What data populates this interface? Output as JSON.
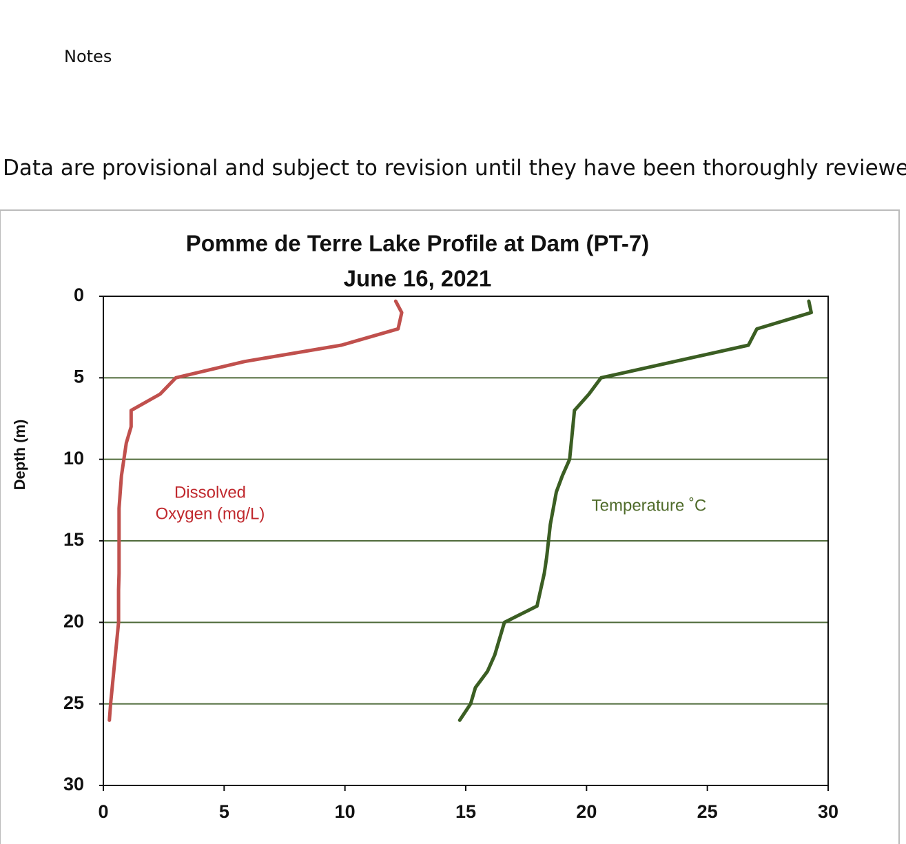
{
  "notes": "Notes",
  "disclaimer": "Data are provisional and subject to revision until they have been thoroughly reviewed a",
  "chart_data": {
    "type": "line",
    "title": [
      "Pomme de Terre Lake Profile at Dam (PT-7)",
      "June 16, 2021"
    ],
    "ylabel": "Depth (m)",
    "y_inverted": true,
    "xlim": [
      0,
      30
    ],
    "xticks": [
      0,
      5,
      10,
      15,
      20,
      25,
      30
    ],
    "ylim": [
      0,
      30
    ],
    "yticks": [
      0,
      5,
      10,
      15,
      20,
      25,
      30
    ],
    "grid": true,
    "grid_color": "#4f6b3a",
    "series": [
      {
        "name": [
          "Dissolved",
          "Oxygen (mg/L)"
        ],
        "color": "#c0504d",
        "label_color": "#c0282d",
        "depth": [
          0.3,
          1,
          2,
          3,
          4,
          5,
          6,
          7,
          8,
          9,
          11,
          13,
          17,
          18,
          20,
          25,
          26
        ],
        "values": [
          12.1,
          12.35,
          12.2,
          9.85,
          5.85,
          3.0,
          2.35,
          1.15,
          1.15,
          0.95,
          0.75,
          0.65,
          0.65,
          0.63,
          0.63,
          0.3,
          0.25
        ]
      },
      {
        "name": [
          "Temperature ˚C"
        ],
        "color": "#3b5e23",
        "label_color": "#4f6b2a",
        "depth": [
          0.3,
          1,
          2,
          3,
          5,
          6,
          7,
          10,
          11,
          12,
          14,
          16,
          17,
          18,
          19,
          20,
          22,
          23,
          24,
          25,
          26
        ],
        "values": [
          29.2,
          29.3,
          27.05,
          26.7,
          20.6,
          20.1,
          19.5,
          19.3,
          19.0,
          18.75,
          18.5,
          18.35,
          18.25,
          18.1,
          17.95,
          16.6,
          16.2,
          15.9,
          15.4,
          15.2,
          14.75
        ]
      }
    ]
  }
}
